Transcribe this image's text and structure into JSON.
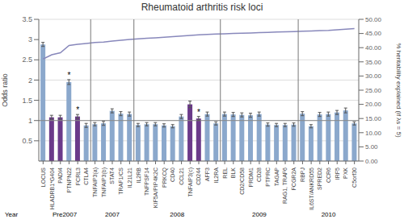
{
  "chart_data": {
    "type": "bar",
    "title": "Rheumatoid arthritis risk loci",
    "categories": [
      "LOCUS",
      "HLADRB1*G404",
      "PADI4",
      "PTNPN22",
      "FCRL3",
      "CTLA4",
      "TNFAIP3(a)",
      "TNFAIP3(b)",
      "STAT4",
      "TRAF1/CS",
      "IL21L21",
      "IL2RB",
      "TNFPSF14",
      "KIF5A/PIP4K2C",
      "PRKCQ",
      "CD40",
      "CCL21",
      "TNFAIP3(c)",
      "CD244",
      "AFF3",
      "IL2RA",
      "REL",
      "BLK",
      "CD2/CD58",
      "PRDM1",
      "CD28",
      "PTPRC",
      "TAGAP",
      "RAG1, TRAF6",
      "FCGR2A",
      "RBPJ",
      "IL6ST/ANKRD55",
      "SPRED2",
      "CCR6",
      "IRF5",
      "PXK",
      "C5orf30"
    ],
    "ylabel": "Odds ratio",
    "y2label": "% heritability explained (if λs = 5)",
    "ylim": [
      0,
      3.5
    ],
    "yticks": [
      0.5,
      1,
      1.5,
      2,
      2.5,
      3,
      3.5
    ],
    "y2lim": [
      0,
      50
    ],
    "y2ticks": [
      {
        "value": 0,
        "label": "0.00"
      },
      {
        "value": 5,
        "label": "5.00"
      },
      {
        "value": 10,
        "label": "10.00"
      },
      {
        "value": 15,
        "label": "15.00"
      },
      {
        "value": 20,
        "label": "20.00"
      },
      {
        "value": 25,
        "label": "25.00"
      },
      {
        "value": 30,
        "label": "30.00"
      },
      {
        "value": 35,
        "label": "35.00"
      },
      {
        "value": 40,
        "label": "40.00"
      },
      {
        "value": 45,
        "label": "45.00"
      },
      {
        "value": 50,
        "label": "50.00"
      }
    ],
    "grid": true,
    "reference_line": 1,
    "series": [
      {
        "type": "bar",
        "colors": [
          "#8BA8CC",
          "#6B3A8A",
          "#6B3A8A",
          "#8BA8CC",
          "#6B3A8A",
          "#8BA8CC",
          "#8BA8CC",
          "#8BA8CC",
          "#8BA8CC",
          "#8BA8CC",
          "#8BA8CC",
          "#8BA8CC",
          "#8BA8CC",
          "#8BA8CC",
          "#8BA8CC",
          "#8BA8CC",
          "#8BA8CC",
          "#6B3A8A",
          "#6B3A8A",
          "#8BA8CC",
          "#8BA8CC",
          "#8BA8CC",
          "#8BA8CC",
          "#8BA8CC",
          "#8BA8CC",
          "#8BA8CC",
          "#8BA8CC",
          "#8BA8CC",
          "#8BA8CC",
          "#8BA8CC",
          "#8BA8CC",
          "#8BA8CC",
          "#8BA8CC",
          "#8BA8CC",
          "#8BA8CC",
          "#8BA8CC",
          "#8BA8CC"
        ],
        "values": [
          2.88,
          1.08,
          1.08,
          1.95,
          1.1,
          0.88,
          0.91,
          0.93,
          1.24,
          1.17,
          1.16,
          0.89,
          0.91,
          0.91,
          0.88,
          0.86,
          1.1,
          1.4,
          1.05,
          1.16,
          0.93,
          1.16,
          1.15,
          1.14,
          1.13,
          1.16,
          0.9,
          0.89,
          0.89,
          0.9,
          1.17,
          0.86,
          1.15,
          1.16,
          1.2,
          1.25,
          0.93
        ],
        "ci_lower": [
          2.83,
          1.03,
          1.03,
          1.89,
          1.05,
          0.83,
          0.87,
          0.88,
          1.19,
          1.12,
          1.11,
          0.85,
          0.87,
          0.87,
          0.84,
          0.82,
          1.05,
          1.32,
          1.0,
          1.11,
          0.89,
          1.11,
          1.1,
          1.09,
          1.08,
          1.11,
          0.86,
          0.85,
          0.85,
          0.86,
          1.12,
          0.82,
          1.1,
          1.11,
          1.15,
          1.19,
          0.89
        ],
        "ci_upper": [
          2.93,
          1.13,
          1.13,
          2.01,
          1.15,
          0.93,
          0.95,
          0.98,
          1.29,
          1.22,
          1.21,
          0.93,
          0.95,
          0.95,
          0.92,
          0.9,
          1.15,
          1.48,
          1.1,
          1.21,
          0.97,
          1.21,
          1.2,
          1.19,
          1.18,
          1.21,
          0.94,
          0.93,
          0.93,
          0.94,
          1.22,
          0.9,
          1.2,
          1.21,
          1.25,
          1.31,
          0.97
        ]
      },
      {
        "type": "line",
        "color": "#8888BB",
        "axis": "y2",
        "values": [
          36.0,
          37.5,
          38.2,
          40.8,
          41.2,
          41.5,
          41.8,
          42.0,
          42.3,
          42.6,
          42.9,
          43.1,
          43.3,
          43.5,
          43.7,
          43.9,
          44.1,
          44.3,
          44.5,
          44.65,
          44.8,
          44.9,
          45.0,
          45.1,
          45.2,
          45.3,
          45.4,
          45.5,
          45.6,
          45.7,
          45.8,
          45.9,
          46.0,
          46.1,
          46.3,
          46.5,
          46.7
        ]
      }
    ],
    "annotations": [
      {
        "text": "*",
        "x": "PTNPN22"
      },
      {
        "text": "*",
        "x": "FCRL3"
      },
      {
        "text": "*",
        "x": "CD244"
      }
    ],
    "groups": [
      {
        "label": "Pre2007",
        "first": "LOCUS",
        "last": "CTLA4"
      },
      {
        "label": "2007",
        "first": "TNFAIP3(a)",
        "last": "IL21L21"
      },
      {
        "label": "2008",
        "first": "IL2RB",
        "last": "IL2RA"
      },
      {
        "label": "2009",
        "first": "REL",
        "last": "FCGR2A"
      },
      {
        "label": "2010",
        "first": "RBPJ",
        "last": "C5orf30"
      }
    ],
    "group_label": "Year"
  }
}
